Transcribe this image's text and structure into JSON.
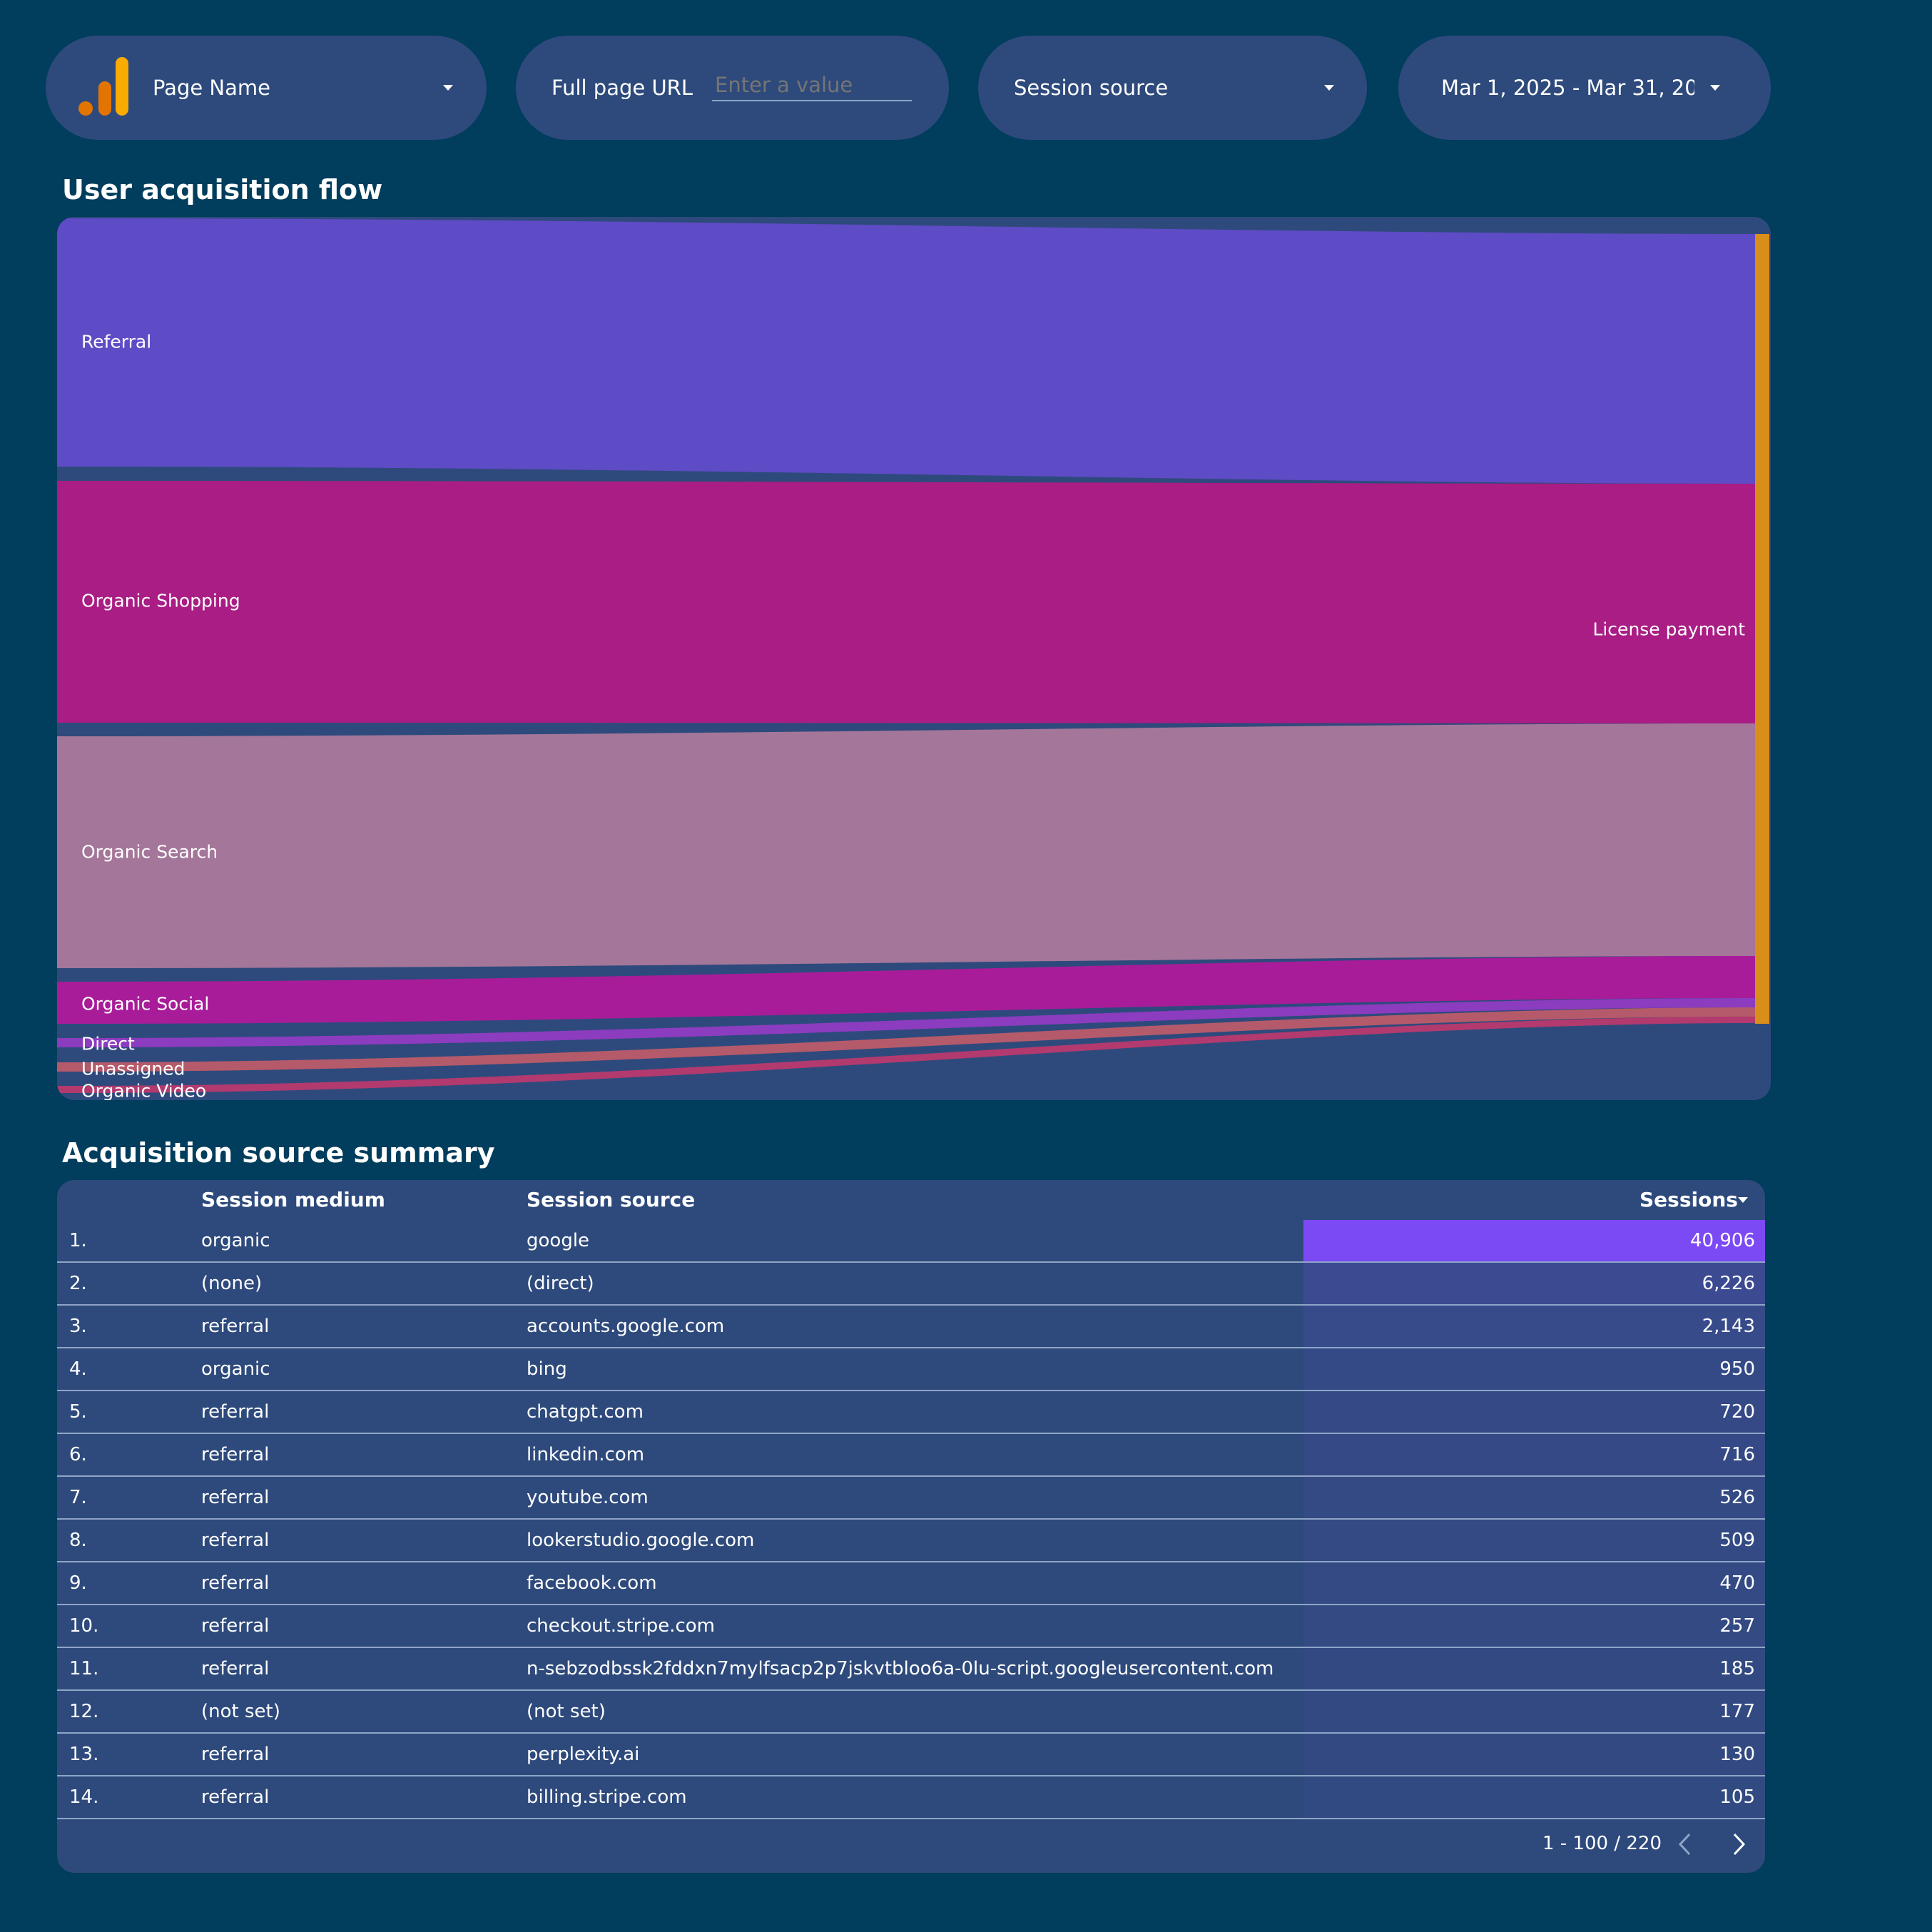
{
  "filters": {
    "page_name": {
      "label": "Page Name"
    },
    "full_page_url": {
      "label": "Full page URL",
      "placeholder": "Enter a value"
    },
    "session_source": {
      "label": "Session source"
    },
    "date_range": {
      "label": "Mar 1, 2025 - Mar 31, 20"
    }
  },
  "sankey": {
    "title": "User acquisition flow",
    "target_label": "License payment",
    "sources": [
      {
        "label": "Referral",
        "color": "#5e4bc6"
      },
      {
        "label": "Organic Shopping",
        "color": "#a91d84"
      },
      {
        "label": "Organic Search",
        "color": "#a47699"
      },
      {
        "label": "Organic Social",
        "color": "#a81c9a"
      },
      {
        "label": "Direct",
        "color": "#8c3cbf"
      },
      {
        "label": "Unassigned",
        "color": "#b55a6a"
      },
      {
        "label": "Organic Video",
        "color": "#b23a6e"
      }
    ],
    "target_color": "#d98e1a"
  },
  "table": {
    "title": "Acquisition source summary",
    "columns": {
      "medium": "Session medium",
      "source": "Session source",
      "sessions": "Sessions"
    },
    "rows": [
      {
        "rank": "1.",
        "medium": "organic",
        "source": "google",
        "sessions": "40,906",
        "value": 40906
      },
      {
        "rank": "2.",
        "medium": "(none)",
        "source": "(direct)",
        "sessions": "6,226",
        "value": 6226
      },
      {
        "rank": "3.",
        "medium": "referral",
        "source": "accounts.google.com",
        "sessions": "2,143",
        "value": 2143
      },
      {
        "rank": "4.",
        "medium": "organic",
        "source": "bing",
        "sessions": "950",
        "value": 950
      },
      {
        "rank": "5.",
        "medium": "referral",
        "source": "chatgpt.com",
        "sessions": "720",
        "value": 720
      },
      {
        "rank": "6.",
        "medium": "referral",
        "source": "linkedin.com",
        "sessions": "716",
        "value": 716
      },
      {
        "rank": "7.",
        "medium": "referral",
        "source": "youtube.com",
        "sessions": "526",
        "value": 526
      },
      {
        "rank": "8.",
        "medium": "referral",
        "source": "lookerstudio.google.com",
        "sessions": "509",
        "value": 509
      },
      {
        "rank": "9.",
        "medium": "referral",
        "source": "facebook.com",
        "sessions": "470",
        "value": 470
      },
      {
        "rank": "10.",
        "medium": "referral",
        "source": "checkout.stripe.com",
        "sessions": "257",
        "value": 257
      },
      {
        "rank": "11.",
        "medium": "referral",
        "source": "n-sebzodbssk2fddxn7mylfsacp2p7jskvtbloo6a-0lu-script.googleusercontent.com",
        "sessions": "185",
        "value": 185
      },
      {
        "rank": "12.",
        "medium": "(not set)",
        "source": "(not set)",
        "sessions": "177",
        "value": 177
      },
      {
        "rank": "13.",
        "medium": "referral",
        "source": "perplexity.ai",
        "sessions": "130",
        "value": 130
      },
      {
        "rank": "14.",
        "medium": "referral",
        "source": "billing.stripe.com",
        "sessions": "105",
        "value": 105
      }
    ],
    "bar_color": "#7c4af5",
    "pagination": "1 - 100 / 220"
  }
}
